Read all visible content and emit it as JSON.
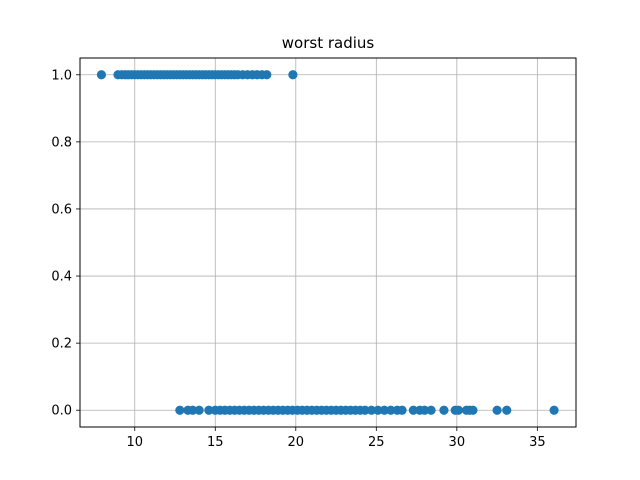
{
  "chart_data": {
    "type": "scatter",
    "title": "worst radius",
    "xlabel": "",
    "ylabel": "",
    "xlim": [
      6.6,
      37.4
    ],
    "ylim": [
      -0.05,
      1.05
    ],
    "xticks": [
      10,
      15,
      20,
      25,
      30,
      35
    ],
    "yticks": [
      0.0,
      0.2,
      0.4,
      0.6,
      0.8,
      1.0
    ],
    "xtick_labels": [
      "10",
      "15",
      "20",
      "25",
      "30",
      "35"
    ],
    "ytick_labels": [
      "0.0",
      "0.2",
      "0.4",
      "0.6",
      "0.8",
      "1.0"
    ],
    "grid": true,
    "color": "#1f77b4",
    "series": [
      {
        "y": 1.0,
        "x": [
          7.93,
          8.96,
          9.2,
          9.4,
          9.6,
          9.8,
          10.0,
          10.2,
          10.4,
          10.6,
          10.8,
          11.0,
          11.2,
          11.4,
          11.6,
          11.8,
          12.0,
          12.2,
          12.4,
          12.6,
          12.8,
          13.0,
          13.2,
          13.4,
          13.6,
          13.8,
          14.0,
          14.2,
          14.4,
          14.6,
          14.8,
          15.0,
          15.2,
          15.4,
          15.6,
          15.8,
          16.0,
          16.2,
          16.4,
          16.7,
          17.0,
          17.3,
          17.6,
          17.9,
          18.2,
          19.82
        ]
      },
      {
        "y": 0.0,
        "x": [
          12.8,
          13.3,
          13.6,
          14.0,
          14.6,
          15.0,
          15.3,
          15.6,
          15.9,
          16.2,
          16.5,
          16.8,
          17.1,
          17.4,
          17.7,
          18.0,
          18.3,
          18.6,
          18.9,
          19.2,
          19.5,
          19.8,
          20.1,
          20.4,
          20.7,
          21.0,
          21.3,
          21.6,
          21.9,
          22.2,
          22.5,
          22.8,
          23.1,
          23.4,
          23.7,
          24.0,
          24.3,
          24.7,
          25.1,
          25.5,
          25.9,
          26.3,
          26.6,
          27.3,
          27.7,
          28.0,
          28.4,
          29.2,
          29.9,
          30.1,
          30.6,
          30.8,
          31.0,
          32.5,
          33.1,
          36.04
        ]
      }
    ]
  }
}
